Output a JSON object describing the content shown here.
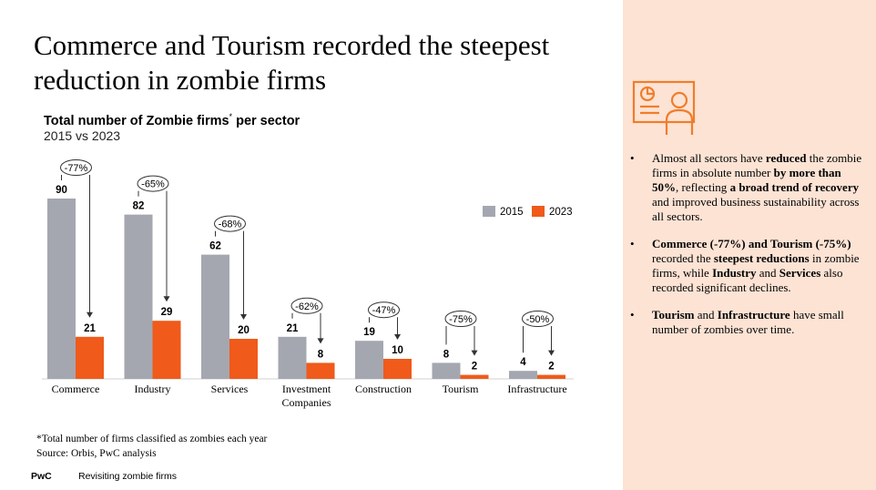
{
  "slide": {
    "title": "Commerce and Tourism recorded the steepest reduction in zombie firms",
    "footnote": "*Total number of firms classified as zombies each year",
    "source": "Source: Orbis, PwC analysis",
    "brand": "PwC",
    "footer": "Revisiting zombie firms"
  },
  "chart_data": {
    "type": "bar",
    "title": "Total number of Zombie firms",
    "title_mark": "*",
    "title_suffix": " per sector",
    "subtitle": "2015 vs 2023",
    "categories": [
      "Commerce",
      "Industry",
      "Services",
      "Investment Companies",
      "Construction",
      "Tourism",
      "Infrastructure"
    ],
    "category_lines": [
      [
        "Commerce"
      ],
      [
        "Industry"
      ],
      [
        "Services"
      ],
      [
        "Investment",
        "Companies"
      ],
      [
        "Construction"
      ],
      [
        "Tourism"
      ],
      [
        "Infrastructure"
      ]
    ],
    "series": [
      {
        "name": "2015",
        "values": [
          90,
          82,
          62,
          21,
          19,
          8,
          4
        ]
      },
      {
        "name": "2023",
        "values": [
          21,
          29,
          20,
          8,
          10,
          2,
          2
        ]
      }
    ],
    "changes": [
      "-77%",
      "-65%",
      "-68%",
      "-62%",
      "-47%",
      "-75%",
      "-50%"
    ],
    "colors": {
      "2015": "#a4a7b0",
      "2023": "#f05a1a"
    },
    "ylim": [
      0,
      90
    ],
    "legend": "top-right"
  },
  "panel": {
    "icon": "presentation-icon",
    "accent": "#f07d2c",
    "bullets": [
      [
        {
          "t": "Almost all sectors have "
        },
        {
          "t": "reduced",
          "b": true
        },
        {
          "t": " the zombie firms in absolute number "
        },
        {
          "t": "by more than 50%",
          "b": true
        },
        {
          "t": ", reflecting "
        },
        {
          "t": "a broad trend of recovery",
          "b": true
        },
        {
          "t": " and improved business sustainability across all sectors."
        }
      ],
      [
        {
          "t": "Commerce (-77%) and Tourism (-75%)",
          "b": true
        },
        {
          "t": " recorded the "
        },
        {
          "t": "steepest reductions",
          "b": true
        },
        {
          "t": " in zombie firms, while "
        },
        {
          "t": "Industry",
          "b": true
        },
        {
          "t": " and "
        },
        {
          "t": "Services",
          "b": true
        },
        {
          "t": " also recorded significant declines."
        }
      ],
      [
        {
          "t": "Tourism",
          "b": true
        },
        {
          "t": " and "
        },
        {
          "t": "Infrastructure",
          "b": true
        },
        {
          "t": " have small number of zombies over time."
        }
      ]
    ]
  }
}
